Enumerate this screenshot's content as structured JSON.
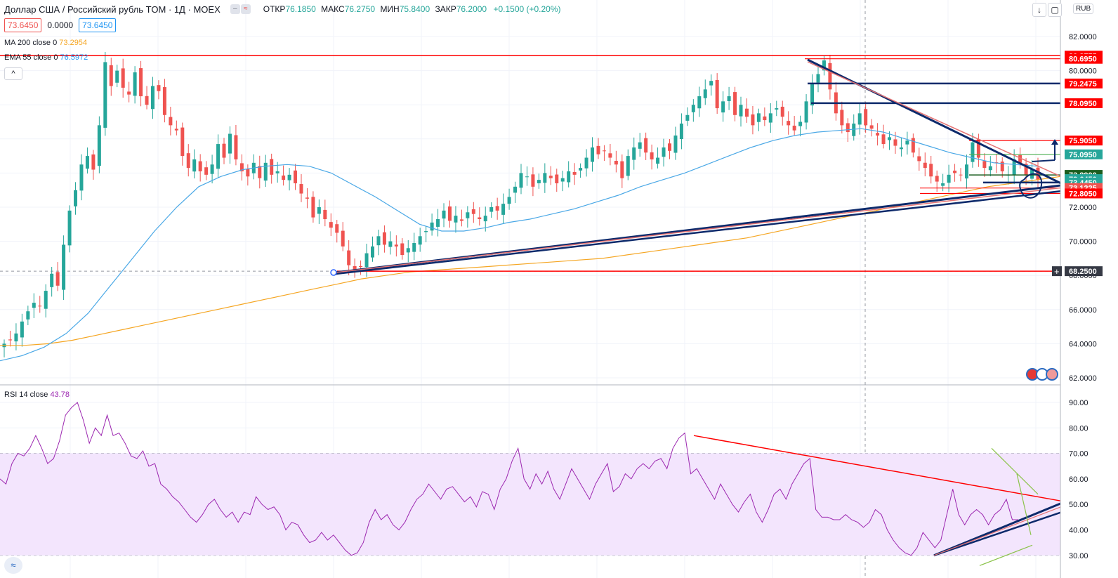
{
  "header": {
    "title": "Доллар США / Российский рубль TOM · 1Д · MOEX",
    "open_label": "ОТКР",
    "open": "76.1850",
    "high_label": "МАКС",
    "high": "76.2750",
    "low_label": "МИН",
    "low": "75.8400",
    "close_label": "ЗАКР",
    "close": "76.2000",
    "change": "+0.1500 (+0.20%)",
    "pill_icons": [
      "minus-icon",
      "wave-icon"
    ]
  },
  "price_row": {
    "bid": "73.6450",
    "spread": "0.0000",
    "ask": "73.6450"
  },
  "indicators": [
    {
      "label": "MA 200 close 0",
      "value": "73.2954",
      "color": "#f5a623"
    },
    {
      "label": "EMA 55 close 0",
      "value": "76.5972",
      "color": "#2196f3"
    }
  ],
  "rsi": {
    "label": "RSI 14 close",
    "value": "43.78",
    "color": "#9c27b0"
  },
  "toolbar": {
    "currency": "RUB",
    "collapse_label": "^",
    "icons": [
      "arrow-down-icon",
      "refresh-icon",
      "fullscreen-icon"
    ]
  },
  "colors": {
    "up": "#26a69a",
    "down": "#ef5350",
    "ma200": "#f5a623",
    "ema55": "#4aa8e6",
    "rsi": "#9c27b0",
    "trend_blue": "#0d2a6b",
    "level_red": "#ff0000"
  },
  "chart_data": [
    {
      "type": "candlestick",
      "ylim": [
        62,
        83
      ],
      "y_ticks": [
        "82.0000",
        "80.0000",
        "78.0000",
        "76.0000",
        "74.0000",
        "72.0000",
        "70.0000",
        "68.0000",
        "66.0000",
        "64.0000",
        "62.0000"
      ],
      "price_labels": [
        {
          "text": "80.8775",
          "value": 80.8775,
          "color": "#ff0000"
        },
        {
          "text": "80.6950",
          "value": 80.695,
          "color": "#ff0000"
        },
        {
          "text": "79.2475",
          "value": 79.2475,
          "color": "#ff0000"
        },
        {
          "text": "78.0950",
          "value": 78.095,
          "color": "#ff0000"
        },
        {
          "text": "75.9050",
          "value": 75.905,
          "color": "#ff0000"
        },
        {
          "text": "75.0950",
          "value": 75.095,
          "color": "#26a69a"
        },
        {
          "text": "73.8900",
          "value": 73.89,
          "color": "#1b5e20"
        },
        {
          "text": "73.6450",
          "value": 73.645,
          "color": "#26a69a"
        },
        {
          "text": "73.4450",
          "value": 73.445,
          "color": "#26a69a"
        },
        {
          "text": "73.1225",
          "value": 73.1225,
          "color": "#ef5350"
        },
        {
          "text": "72.8050",
          "value": 72.805,
          "color": "#ff0000"
        },
        {
          "text": "68.2500",
          "value": 68.25,
          "color": "#363a45"
        }
      ],
      "horizontal_levels": [
        80.8775,
        68.25
      ],
      "closes": [
        64.0,
        64.2,
        64.6,
        65.3,
        65.9,
        66.4,
        66.2,
        67.1,
        68.1,
        67.4,
        69.8,
        71.8,
        73.0,
        74.5,
        75.0,
        74.2,
        76.8,
        80.5,
        79.1,
        80.0,
        79.0,
        78.6,
        79.9,
        78.5,
        78.0,
        79.1,
        78.8,
        77.4,
        76.8,
        76.5,
        75.0,
        74.3,
        74.8,
        74.1,
        73.9,
        74.5,
        75.7,
        74.9,
        76.3,
        74.8,
        74.1,
        73.8,
        74.6,
        73.7,
        74.6,
        73.9,
        74.1,
        73.6,
        73.9,
        73.4,
        72.8,
        72.5,
        71.4,
        72.0,
        71.3,
        70.8,
        70.5,
        69.7,
        68.6,
        68.3,
        68.5,
        69.3,
        69.7,
        70.3,
        69.8,
        70.0,
        69.7,
        69.2,
        69.6,
        69.9,
        70.3,
        70.6,
        71.1,
        71.3,
        71.8,
        71.2,
        71.5,
        71.2,
        71.7,
        71.6,
        71.3,
        71.5,
        72.0,
        71.8,
        72.2,
        72.6,
        73.2,
        74.0,
        73.8,
        73.2,
        73.6,
        74.0,
        73.7,
        73.4,
        73.7,
        74.1,
        73.9,
        74.3,
        74.9,
        75.5,
        75.1,
        75.3,
        74.9,
        74.5,
        73.7,
        75.0,
        75.5,
        75.8,
        75.2,
        74.8,
        74.9,
        75.5,
        75.3,
        76.2,
        76.9,
        77.4,
        78.0,
        78.5,
        78.9,
        79.4,
        77.8,
        78.2,
        78.5,
        77.4,
        78.0,
        77.3,
        76.8,
        77.5,
        77.1,
        77.5,
        77.8,
        77.3,
        76.8,
        76.5,
        77.0,
        78.2,
        79.2,
        79.8,
        80.6,
        78.9,
        77.5,
        76.8,
        76.4,
        76.9,
        77.5,
        76.8,
        76.6,
        76.2,
        75.7,
        76.1,
        75.6,
        75.5,
        75.9,
        75.2,
        74.7,
        74.3,
        73.8,
        73.5,
        73.4,
        73.9,
        74.0,
        73.9,
        74.5,
        75.8,
        74.9,
        74.3,
        74.4,
        74.6,
        74.1,
        73.9,
        74.8,
        74.6,
        73.9,
        74.2,
        73.6
      ],
      "ma200": [
        63.9,
        63.9,
        64.0,
        64.2,
        64.5,
        64.8,
        65.1,
        65.4,
        65.7,
        66.0,
        66.3,
        66.6,
        66.9,
        67.2,
        67.5,
        67.8,
        68.0,
        68.2,
        68.3,
        68.4,
        68.5,
        68.6,
        68.7,
        68.8,
        68.9,
        69.0,
        69.2,
        69.4,
        69.6,
        69.8,
        70.0,
        70.2,
        70.5,
        70.8,
        71.1,
        71.4,
        71.7,
        72.0,
        72.3,
        72.6,
        72.9,
        73.2,
        73.4,
        73.6,
        73.8
      ],
      "ema55": [
        63.0,
        63.3,
        63.8,
        64.6,
        65.8,
        67.4,
        69.0,
        70.6,
        72.0,
        73.2,
        73.8,
        74.2,
        74.4,
        74.5,
        74.4,
        74.0,
        73.3,
        72.6,
        71.8,
        71.0,
        70.6,
        70.6,
        70.8,
        71.1,
        71.3,
        71.6,
        71.9,
        72.3,
        72.7,
        73.2,
        73.6,
        74.0,
        74.5,
        75.0,
        75.5,
        75.9,
        76.2,
        76.4,
        76.5,
        76.6,
        76.4,
        76.0,
        75.6,
        75.2,
        74.9,
        74.6,
        74.5,
        74.4
      ]
    },
    {
      "type": "line",
      "title": "RSI 14 close",
      "ylim": [
        28,
        95
      ],
      "y_ticks": [
        "90.00",
        "80.00",
        "70.00",
        "60.00",
        "50.00",
        "40.00",
        "30.00"
      ],
      "band": [
        30,
        70
      ],
      "values": [
        60,
        58,
        66,
        70,
        69,
        72,
        77,
        72,
        66,
        68,
        75,
        85,
        88,
        90,
        83,
        74,
        80,
        77,
        85,
        77,
        78,
        74,
        69,
        68,
        71,
        65,
        66,
        58,
        56,
        53,
        51,
        48,
        45,
        43,
        46,
        50,
        52,
        48,
        45,
        47,
        43,
        47,
        46,
        53,
        50,
        48,
        49,
        46,
        40,
        43,
        42,
        38,
        35,
        36,
        39,
        36,
        38,
        35,
        32,
        30,
        31,
        35,
        43,
        48,
        44,
        46,
        42,
        40,
        43,
        48,
        52,
        54,
        58,
        55,
        52,
        56,
        57,
        54,
        51,
        53,
        49,
        55,
        54,
        48,
        56,
        60,
        67,
        72,
        60,
        56,
        62,
        58,
        63,
        56,
        52,
        58,
        64,
        60,
        56,
        52,
        58,
        62,
        66,
        55,
        57,
        62,
        60,
        64,
        66,
        64,
        67,
        68,
        64,
        72,
        76,
        78,
        62,
        64,
        60,
        56,
        52,
        58,
        54,
        50,
        47,
        51,
        54,
        47,
        43,
        48,
        54,
        56,
        52,
        58,
        62,
        66,
        68,
        48,
        45,
        45,
        44,
        44,
        46,
        44,
        43,
        41,
        43,
        48,
        46,
        40,
        36,
        33,
        31,
        30,
        33,
        39,
        36,
        33,
        36,
        46,
        56,
        46,
        42,
        46,
        48,
        46,
        42,
        46,
        48,
        52,
        44,
        44
      ]
    }
  ]
}
